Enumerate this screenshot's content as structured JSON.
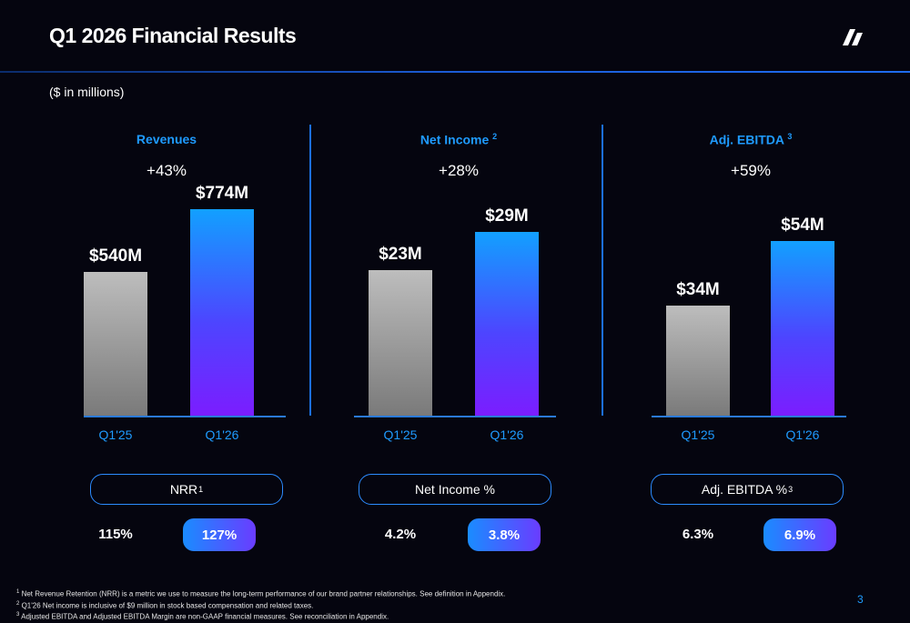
{
  "header": {
    "title": "Q1 2026 Financial Results",
    "units": "($ in millions)"
  },
  "logo_icon": "slash-stripes-logo",
  "colors": {
    "background": "#05050f",
    "accent": "#1f9bff",
    "prior_bar": "#a0a0a0",
    "current_bar_top": "#12a0ff",
    "current_bar_bottom": "#7b1dff"
  },
  "chart_data": [
    {
      "type": "bar",
      "title": "Revenues",
      "title_sup": "",
      "growth": "+43%",
      "categories": [
        "Q1'25",
        "Q1'26"
      ],
      "values": [
        540,
        774
      ],
      "labels": [
        "$540M",
        "$774M"
      ],
      "ylim": [
        0,
        820
      ],
      "metric": {
        "label": "NRR",
        "sup": "1",
        "prev": "115%",
        "curr": "127%"
      }
    },
    {
      "type": "bar",
      "title": "Net Income",
      "title_sup": "2",
      "growth": "+28%",
      "categories": [
        "Q1'25",
        "Q1'26"
      ],
      "values": [
        23,
        29
      ],
      "labels": [
        "$23M",
        "$29M"
      ],
      "ylim": [
        0,
        34.5
      ],
      "metric": {
        "label": "Net Income %",
        "sup": "",
        "prev": "4.2%",
        "curr": "3.8%"
      }
    },
    {
      "type": "bar",
      "title": "Adj. EBITDA",
      "title_sup": "3",
      "growth": "+59%",
      "categories": [
        "Q1'25",
        "Q1'26"
      ],
      "values": [
        34,
        54
      ],
      "labels": [
        "$34M",
        "$54M"
      ],
      "ylim": [
        0,
        67.6
      ],
      "metric": {
        "label": "Adj. EBITDA %",
        "sup": "3",
        "prev": "6.3%",
        "curr": "6.9%"
      }
    }
  ],
  "footnotes": [
    {
      "sup": "1",
      "text": "Net Revenue Retention (NRR) is a metric we use to measure the long-term performance of our brand partner relationships. See definition in Appendix."
    },
    {
      "sup": "2",
      "text": "Q1'26 Net income is inclusive of $9 million in stock based compensation and related taxes."
    },
    {
      "sup": "3",
      "text": "Adjusted EBITDA and Adjusted EBITDA Margin are non-GAAP financial measures. See reconciliation in Appendix."
    }
  ],
  "page_number": "3"
}
